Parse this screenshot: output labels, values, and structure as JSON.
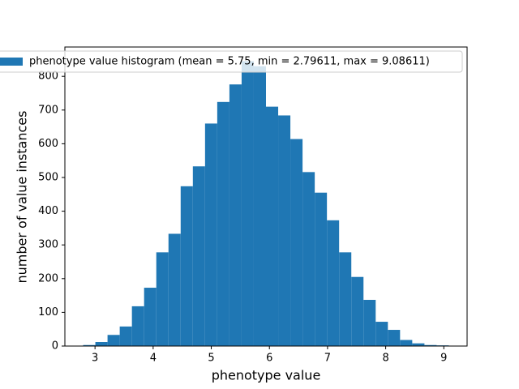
{
  "chart_data": {
    "type": "histogram",
    "xlabel": "phenotype value",
    "ylabel": "number of value instances",
    "legend": "phenotype value histogram (mean = 5.75, min = 2.79611, max = 9.08611)",
    "legend_position": "upper left",
    "color": "#1f77b4",
    "bins": [
      2.7961,
      3.0058,
      3.2154,
      3.4251,
      3.6348,
      3.8444,
      4.0541,
      4.2638,
      4.4734,
      4.6831,
      4.8928,
      5.1024,
      5.3121,
      5.5218,
      5.7314,
      5.9411,
      6.1508,
      6.3604,
      6.5701,
      6.7798,
      6.9894,
      7.1991,
      7.4088,
      7.6184,
      7.8281,
      8.0378,
      8.2474,
      8.4571,
      8.6668,
      8.8764,
      9.0861
    ],
    "values": [
      3,
      12,
      33,
      58,
      118,
      173,
      278,
      333,
      474,
      533,
      660,
      724,
      776,
      845,
      830,
      710,
      684,
      614,
      516,
      455,
      373,
      278,
      205,
      137,
      72,
      48,
      18,
      8,
      3,
      2
    ],
    "xlim": [
      2.4816,
      9.4006
    ],
    "ylim": [
      0,
      887
    ],
    "xticks": [
      3,
      4,
      5,
      6,
      7,
      8,
      9
    ],
    "yticks": [
      0,
      100,
      200,
      300,
      400,
      500,
      600,
      700,
      800
    ]
  }
}
